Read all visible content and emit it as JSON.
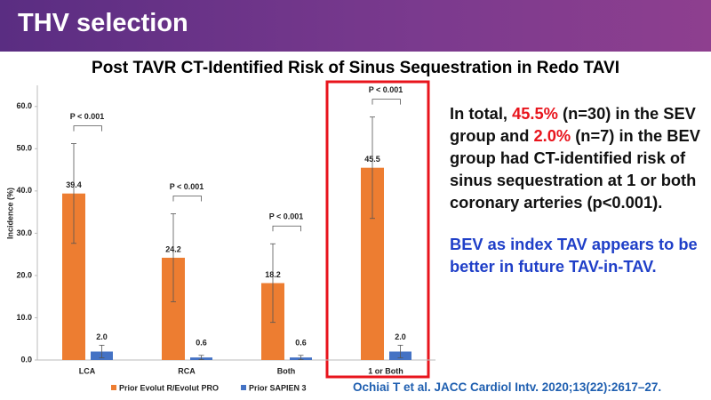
{
  "header": {
    "title": "THV selection"
  },
  "chart_data": {
    "type": "bar",
    "title": "Post TAVR CT-Identified Risk of Sinus Sequestration in Redo TAVI",
    "y_label": "Incidence (%)",
    "categories": [
      "LCA",
      "RCA",
      "Both",
      "1 or Both"
    ],
    "series": [
      {
        "name": "Prior Evolut R/Evolut PRO",
        "color": "#ed7d31",
        "values": [
          39.4,
          24.2,
          18.2,
          45.5
        ],
        "value_labels": [
          "39.4",
          "24.2",
          "18.2",
          "45.5"
        ],
        "errors": [
          11.8,
          10.4,
          9.3,
          12
        ]
      },
      {
        "name": "Prior SAPIEN 3",
        "color": "#4472c4",
        "values": [
          2,
          0.6,
          0.6,
          2
        ],
        "value_labels": [
          "2.0",
          "0.6",
          "0.6",
          "2.0"
        ],
        "errors": [
          1.5,
          0.5,
          0.5,
          1.5
        ]
      }
    ],
    "annotations": [
      "P < 0.001",
      "P < 0.001",
      "P < 0.001",
      "P < 0.001"
    ],
    "ylim": [
      0,
      65
    ],
    "yticks": [
      {
        "value": 0,
        "label": "0.0"
      },
      {
        "value": 10,
        "label": "10.0"
      },
      {
        "value": 20,
        "label": "20.0"
      },
      {
        "value": 30,
        "label": "30.0"
      },
      {
        "value": 40,
        "label": "40.0"
      },
      {
        "value": 50,
        "label": "50.0"
      },
      {
        "value": 60,
        "label": "60.0"
      }
    ],
    "legend": "bottom"
  },
  "side_text": {
    "paragraph1": [
      "In total, ",
      "45.5%",
      " (n=30) in the SEV group and ",
      "2.0%",
      " (n=7) in the BEV group had CT-identified risk of sinus sequestration at 1 or both coronary arteries (p<0.001)."
    ],
    "paragraph2": "BEV as index TAV appears to be better in future TAV-in-TAV."
  },
  "citation": "Ochiai T et al. JACC Cardiol Intv. 2020;13(22):2617–27."
}
